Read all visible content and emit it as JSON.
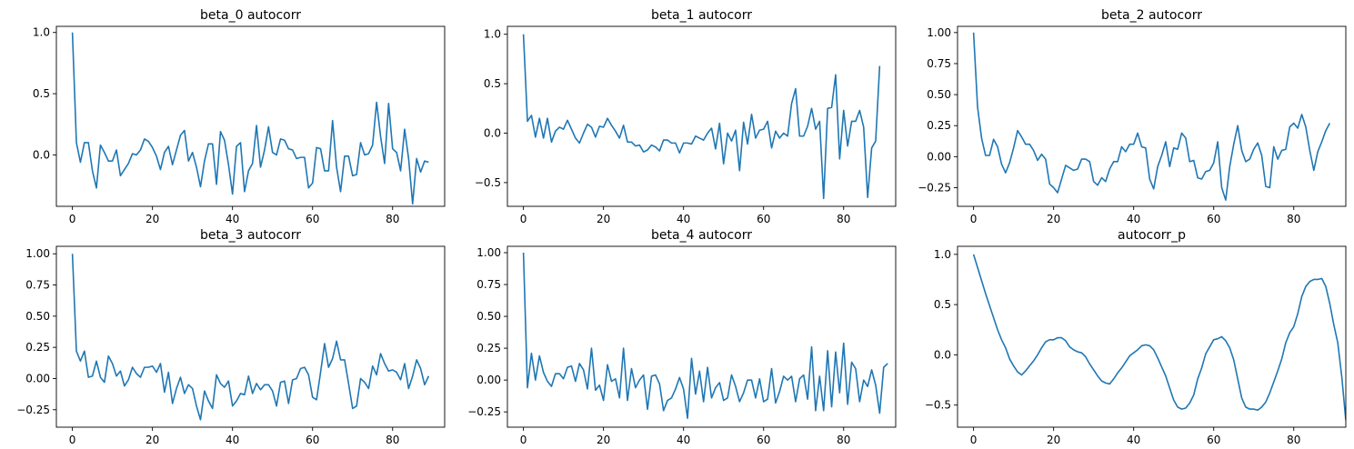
{
  "figure": {
    "line_color": "#1f77b4",
    "grid": false,
    "layout": "2x3"
  },
  "chart_data": [
    {
      "type": "line",
      "title": "beta_0 autocorr",
      "xlim": [
        0,
        89
      ],
      "ylim": [
        -0.42,
        1.05
      ],
      "xticks": [
        0,
        20,
        40,
        60,
        80
      ],
      "yticks": [
        0.0,
        0.5,
        1.0
      ],
      "ytick_labels": [
        "0.0",
        "0.5",
        "1.0"
      ],
      "x_start": 0,
      "series": [
        {
          "values": [
            1.0,
            0.1,
            -0.06,
            0.1,
            0.1,
            -0.13,
            -0.27,
            0.08,
            0.02,
            -0.05,
            -0.05,
            0.04,
            -0.17,
            -0.12,
            -0.07,
            0.01,
            0.0,
            0.04,
            0.13,
            0.11,
            0.06,
            -0.01,
            -0.12,
            0.02,
            0.07,
            -0.08,
            0.04,
            0.16,
            0.2,
            -0.05,
            0.02,
            -0.1,
            -0.26,
            -0.05,
            0.09,
            0.09,
            -0.24,
            0.19,
            0.12,
            -0.08,
            -0.32,
            0.07,
            0.1,
            -0.3,
            -0.13,
            -0.07,
            0.24,
            -0.1,
            0.04,
            0.23,
            0.02,
            0.0,
            0.13,
            0.12,
            0.05,
            0.04,
            -0.03,
            -0.02,
            -0.02,
            -0.27,
            -0.23,
            0.06,
            0.05,
            -0.13,
            -0.13,
            0.28,
            -0.1,
            -0.3,
            -0.01,
            -0.01,
            -0.17,
            -0.16,
            0.1,
            0.0,
            0.01,
            0.08,
            0.43,
            0.15,
            -0.07,
            0.42,
            0.05,
            0.02,
            -0.13,
            0.21,
            -0.03,
            -0.4,
            -0.03,
            -0.14,
            -0.05,
            -0.06
          ]
        }
      ]
    },
    {
      "type": "line",
      "title": "beta_1 autocorr",
      "xlim": [
        0,
        89
      ],
      "ylim": [
        -0.74,
        1.08
      ],
      "xticks": [
        0,
        20,
        40,
        60,
        80
      ],
      "yticks": [
        -0.5,
        0.0,
        0.5,
        1.0
      ],
      "ytick_labels": [
        "−0.5",
        "0.0",
        "0.5",
        "1.0"
      ],
      "x_start": 0,
      "series": [
        {
          "values": [
            1.0,
            0.12,
            0.18,
            -0.04,
            0.15,
            -0.05,
            0.15,
            -0.09,
            0.02,
            0.06,
            0.04,
            0.13,
            0.04,
            -0.05,
            -0.1,
            0.0,
            0.09,
            0.06,
            -0.04,
            0.07,
            0.06,
            0.15,
            0.08,
            0.02,
            -0.05,
            0.08,
            -0.09,
            -0.09,
            -0.13,
            -0.12,
            -0.19,
            -0.17,
            -0.12,
            -0.14,
            -0.18,
            -0.07,
            -0.07,
            -0.1,
            -0.1,
            -0.2,
            -0.1,
            -0.1,
            -0.11,
            -0.03,
            -0.05,
            -0.07,
            0.0,
            0.05,
            -0.16,
            0.1,
            -0.31,
            0.0,
            -0.08,
            0.03,
            -0.38,
            0.11,
            -0.11,
            0.19,
            -0.05,
            0.03,
            0.04,
            0.12,
            -0.15,
            0.02,
            -0.05,
            0.0,
            -0.03,
            0.3,
            0.45,
            -0.03,
            -0.03,
            0.07,
            0.25,
            0.04,
            0.12,
            -0.66,
            0.25,
            0.26,
            0.59,
            -0.26,
            0.23,
            -0.13,
            0.12,
            0.12,
            0.23,
            0.06,
            -0.65,
            -0.15,
            -0.08,
            0.68
          ]
        }
      ]
    },
    {
      "type": "line",
      "title": "beta_2 autocorr",
      "xlim": [
        0,
        89
      ],
      "ylim": [
        -0.4,
        1.05
      ],
      "xticks": [
        0,
        20,
        40,
        60,
        80
      ],
      "yticks": [
        -0.25,
        0.0,
        0.25,
        0.5,
        0.75,
        1.0
      ],
      "ytick_labels": [
        "−0.25",
        "0.00",
        "0.25",
        "0.50",
        "0.75",
        "1.00"
      ],
      "x_start": 0,
      "series": [
        {
          "values": [
            1.0,
            0.4,
            0.15,
            0.01,
            0.01,
            0.14,
            0.08,
            -0.06,
            -0.13,
            -0.05,
            0.07,
            0.21,
            0.16,
            0.1,
            0.1,
            0.05,
            -0.03,
            0.02,
            -0.02,
            -0.22,
            -0.25,
            -0.29,
            -0.18,
            -0.07,
            -0.09,
            -0.11,
            -0.1,
            -0.02,
            -0.02,
            -0.04,
            -0.2,
            -0.23,
            -0.17,
            -0.2,
            -0.1,
            -0.04,
            -0.04,
            0.08,
            0.04,
            0.1,
            0.1,
            0.19,
            0.08,
            0.07,
            -0.18,
            -0.26,
            -0.08,
            0.01,
            0.12,
            -0.08,
            0.07,
            0.06,
            0.19,
            0.15,
            -0.04,
            -0.03,
            -0.17,
            -0.18,
            -0.12,
            -0.11,
            -0.05,
            0.12,
            -0.25,
            -0.35,
            -0.08,
            0.1,
            0.25,
            0.05,
            -0.04,
            -0.02,
            0.06,
            0.11,
            0.01,
            -0.24,
            -0.25,
            0.08,
            -0.02,
            0.05,
            0.06,
            0.24,
            0.27,
            0.23,
            0.34,
            0.24,
            0.05,
            -0.11,
            0.04,
            0.12,
            0.21,
            0.27
          ]
        }
      ]
    },
    {
      "type": "line",
      "title": "beta_3 autocorr",
      "xlim": [
        0,
        89
      ],
      "ylim": [
        -0.39,
        1.06
      ],
      "xticks": [
        0,
        20,
        40,
        60,
        80
      ],
      "yticks": [
        -0.25,
        0.0,
        0.25,
        0.5,
        0.75,
        1.0
      ],
      "ytick_labels": [
        "−0.25",
        "0.00",
        "0.25",
        "0.50",
        "0.75",
        "1.00"
      ],
      "x_start": 0,
      "series": [
        {
          "values": [
            1.0,
            0.22,
            0.14,
            0.22,
            0.01,
            0.02,
            0.14,
            0.01,
            -0.03,
            0.18,
            0.12,
            0.02,
            0.06,
            -0.06,
            -0.01,
            0.09,
            0.04,
            0.01,
            0.09,
            0.09,
            0.1,
            0.05,
            0.12,
            -0.11,
            0.05,
            -0.2,
            -0.08,
            0.01,
            -0.12,
            -0.05,
            -0.08,
            -0.22,
            -0.33,
            -0.1,
            -0.18,
            -0.24,
            0.03,
            -0.04,
            -0.07,
            -0.02,
            -0.22,
            -0.18,
            -0.12,
            -0.13,
            0.02,
            -0.12,
            -0.04,
            -0.09,
            -0.05,
            -0.05,
            -0.1,
            -0.22,
            -0.03,
            -0.02,
            -0.2,
            -0.01,
            0.0,
            0.08,
            0.09,
            0.03,
            -0.15,
            -0.17,
            0.05,
            0.28,
            0.09,
            0.16,
            0.3,
            0.15,
            0.15,
            -0.04,
            -0.24,
            -0.22,
            0.0,
            -0.03,
            -0.08,
            0.1,
            0.03,
            0.2,
            0.12,
            0.06,
            0.07,
            0.05,
            -0.01,
            0.12,
            -0.08,
            0.02,
            0.15,
            0.08,
            -0.05,
            0.02
          ]
        }
      ]
    },
    {
      "type": "line",
      "title": "beta_4 autocorr",
      "xlim": [
        0,
        89
      ],
      "ylim": [
        -0.37,
        1.05
      ],
      "xticks": [
        0,
        20,
        40,
        60,
        80
      ],
      "yticks": [
        -0.25,
        0.0,
        0.25,
        0.5,
        0.75,
        1.0
      ],
      "ytick_labels": [
        "−0.25",
        "0.00",
        "0.25",
        "0.50",
        "0.75",
        "1.00"
      ],
      "x_start": 0,
      "series": [
        {
          "values": [
            1.0,
            -0.06,
            0.21,
            0.0,
            0.19,
            0.06,
            -0.01,
            -0.05,
            0.05,
            0.05,
            0.01,
            0.1,
            0.11,
            -0.01,
            0.13,
            0.08,
            -0.07,
            0.25,
            -0.08,
            -0.04,
            -0.16,
            0.12,
            -0.01,
            0.01,
            -0.14,
            0.25,
            -0.16,
            0.09,
            -0.06,
            0.0,
            0.04,
            -0.23,
            0.03,
            0.04,
            -0.03,
            -0.24,
            -0.16,
            -0.14,
            -0.07,
            0.02,
            -0.07,
            -0.3,
            0.17,
            -0.11,
            0.07,
            -0.17,
            0.1,
            -0.14,
            -0.06,
            -0.02,
            -0.16,
            -0.14,
            0.04,
            -0.05,
            -0.17,
            -0.1,
            0.0,
            0.0,
            -0.14,
            0.01,
            -0.17,
            -0.15,
            0.09,
            -0.18,
            -0.09,
            0.03,
            0.0,
            0.03,
            -0.17,
            0.01,
            0.04,
            -0.15,
            0.26,
            -0.24,
            0.03,
            -0.24,
            0.23,
            -0.21,
            0.22,
            -0.1,
            0.29,
            -0.19,
            0.14,
            0.09,
            -0.17,
            0.0,
            -0.05,
            0.08,
            -0.04,
            -0.26,
            0.1,
            0.13
          ]
        }
      ]
    },
    {
      "type": "line",
      "title": "autocorr_p",
      "xlim": [
        0,
        89
      ],
      "ylim": [
        -0.72,
        1.08
      ],
      "xticks": [
        0,
        20,
        40,
        60,
        80
      ],
      "yticks": [
        -0.5,
        0.0,
        0.5,
        1.0
      ],
      "ytick_labels": [
        "−0.5",
        "0.0",
        "0.5",
        "1.0"
      ],
      "x_start": 0,
      "series": [
        {
          "values": [
            1.0,
            0.87,
            0.74,
            0.61,
            0.49,
            0.37,
            0.25,
            0.15,
            0.07,
            -0.04,
            -0.11,
            -0.17,
            -0.2,
            -0.16,
            -0.11,
            -0.06,
            0.0,
            0.07,
            0.13,
            0.15,
            0.15,
            0.17,
            0.17,
            0.14,
            0.08,
            0.05,
            0.03,
            0.02,
            -0.02,
            -0.09,
            -0.15,
            -0.21,
            -0.26,
            -0.28,
            -0.29,
            -0.24,
            -0.18,
            -0.13,
            -0.07,
            -0.01,
            0.02,
            0.05,
            0.09,
            0.1,
            0.09,
            0.05,
            -0.03,
            -0.12,
            -0.21,
            -0.33,
            -0.45,
            -0.52,
            -0.54,
            -0.53,
            -0.48,
            -0.4,
            -0.24,
            -0.13,
            0.01,
            0.08,
            0.15,
            0.16,
            0.18,
            0.14,
            0.07,
            -0.05,
            -0.24,
            -0.43,
            -0.52,
            -0.54,
            -0.54,
            -0.55,
            -0.52,
            -0.47,
            -0.38,
            -0.27,
            -0.16,
            -0.04,
            0.12,
            0.22,
            0.28,
            0.41,
            0.58,
            0.68,
            0.73,
            0.75,
            0.75,
            0.76,
            0.68,
            0.51,
            0.3,
            0.12,
            -0.22,
            -0.65
          ]
        }
      ]
    }
  ]
}
